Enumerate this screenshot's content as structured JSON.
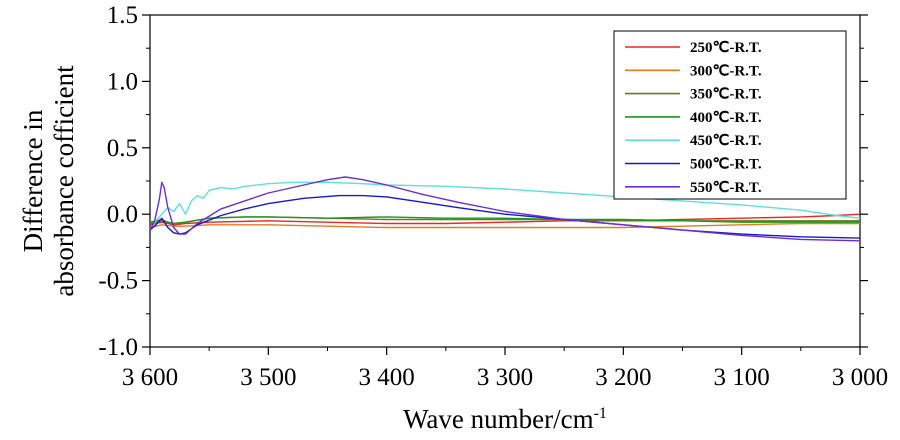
{
  "chart_data": {
    "type": "line",
    "xlabel": "Wave number/cm",
    "xlabel_sup": "-1",
    "ylabel_lines": [
      "Difference in",
      "absorbance cofficient"
    ],
    "xlim": [
      3600,
      3000
    ],
    "ylim": [
      -1.0,
      1.5
    ],
    "x_ticks": [
      3600,
      3500,
      3400,
      3300,
      3200,
      3100,
      3000
    ],
    "x_tick_labels": [
      "3 600",
      "3 500",
      "3 400",
      "3 300",
      "3 200",
      "3 100",
      "3 000"
    ],
    "y_ticks": [
      -1.0,
      -0.5,
      0.0,
      0.5,
      1.0,
      1.5
    ],
    "y_tick_labels": [
      "-1.0",
      "-0.5",
      "0.0",
      "0.5",
      "1.0",
      "1.5"
    ],
    "legend_position": "top-right",
    "grid": false,
    "series": [
      {
        "name": "250℃-R.T.",
        "color": "#e8282a",
        "points": [
          [
            3600,
            -0.08
          ],
          [
            3595,
            -0.07
          ],
          [
            3590,
            -0.06
          ],
          [
            3585,
            -0.07
          ],
          [
            3580,
            -0.08
          ],
          [
            3570,
            -0.07
          ],
          [
            3550,
            -0.06
          ],
          [
            3500,
            -0.05
          ],
          [
            3450,
            -0.06
          ],
          [
            3400,
            -0.07
          ],
          [
            3350,
            -0.07
          ],
          [
            3300,
            -0.06
          ],
          [
            3250,
            -0.05
          ],
          [
            3200,
            -0.05
          ],
          [
            3150,
            -0.04
          ],
          [
            3100,
            -0.03
          ],
          [
            3050,
            -0.02
          ],
          [
            3020,
            -0.01
          ],
          [
            3000,
            0.0
          ]
        ]
      },
      {
        "name": "300℃-R.T.",
        "color": "#e87a1e",
        "points": [
          [
            3600,
            -0.1
          ],
          [
            3595,
            -0.09
          ],
          [
            3590,
            -0.08
          ],
          [
            3580,
            -0.09
          ],
          [
            3570,
            -0.09
          ],
          [
            3550,
            -0.08
          ],
          [
            3500,
            -0.08
          ],
          [
            3450,
            -0.09
          ],
          [
            3400,
            -0.1
          ],
          [
            3350,
            -0.1
          ],
          [
            3300,
            -0.1
          ],
          [
            3250,
            -0.1
          ],
          [
            3200,
            -0.1
          ],
          [
            3150,
            -0.09
          ],
          [
            3100,
            -0.08
          ],
          [
            3050,
            -0.07
          ],
          [
            3000,
            -0.07
          ]
        ]
      },
      {
        "name": "350℃-R.T.",
        "color": "#6a7a1a",
        "points": [
          [
            3600,
            -0.06
          ],
          [
            3595,
            -0.05
          ],
          [
            3590,
            -0.04
          ],
          [
            3585,
            -0.06
          ],
          [
            3580,
            -0.07
          ],
          [
            3570,
            -0.06
          ],
          [
            3550,
            -0.03
          ],
          [
            3520,
            -0.02
          ],
          [
            3500,
            -0.02
          ],
          [
            3450,
            -0.03
          ],
          [
            3400,
            -0.04
          ],
          [
            3350,
            -0.04
          ],
          [
            3300,
            -0.04
          ],
          [
            3250,
            -0.04
          ],
          [
            3200,
            -0.05
          ],
          [
            3150,
            -0.05
          ],
          [
            3100,
            -0.05
          ],
          [
            3050,
            -0.05
          ],
          [
            3000,
            -0.05
          ]
        ]
      },
      {
        "name": "400℃-R.T.",
        "color": "#1a9a1a",
        "points": [
          [
            3600,
            -0.07
          ],
          [
            3595,
            -0.06
          ],
          [
            3590,
            -0.05
          ],
          [
            3580,
            -0.07
          ],
          [
            3570,
            -0.06
          ],
          [
            3550,
            -0.03
          ],
          [
            3520,
            -0.02
          ],
          [
            3500,
            -0.02
          ],
          [
            3450,
            -0.03
          ],
          [
            3400,
            -0.02
          ],
          [
            3350,
            -0.03
          ],
          [
            3300,
            -0.03
          ],
          [
            3250,
            -0.04
          ],
          [
            3200,
            -0.04
          ],
          [
            3150,
            -0.05
          ],
          [
            3100,
            -0.06
          ],
          [
            3050,
            -0.06
          ],
          [
            3000,
            -0.06
          ]
        ]
      },
      {
        "name": "450℃-R.T.",
        "color": "#5fe0d8",
        "points": [
          [
            3600,
            -0.12
          ],
          [
            3595,
            -0.05
          ],
          [
            3590,
            0.0
          ],
          [
            3585,
            0.05
          ],
          [
            3580,
            0.02
          ],
          [
            3575,
            0.08
          ],
          [
            3570,
            0.0
          ],
          [
            3565,
            0.1
          ],
          [
            3560,
            0.14
          ],
          [
            3555,
            0.12
          ],
          [
            3550,
            0.18
          ],
          [
            3540,
            0.2
          ],
          [
            3530,
            0.19
          ],
          [
            3520,
            0.21
          ],
          [
            3500,
            0.23
          ],
          [
            3480,
            0.24
          ],
          [
            3450,
            0.24
          ],
          [
            3420,
            0.23
          ],
          [
            3400,
            0.22
          ],
          [
            3350,
            0.21
          ],
          [
            3300,
            0.19
          ],
          [
            3250,
            0.16
          ],
          [
            3200,
            0.13
          ],
          [
            3150,
            0.1
          ],
          [
            3100,
            0.07
          ],
          [
            3050,
            0.03
          ],
          [
            3020,
            -0.01
          ],
          [
            3000,
            -0.03
          ]
        ]
      },
      {
        "name": "500℃-R.T.",
        "color": "#1818d0",
        "points": [
          [
            3600,
            -0.12
          ],
          [
            3595,
            -0.08
          ],
          [
            3590,
            -0.03
          ],
          [
            3585,
            -0.1
          ],
          [
            3580,
            -0.14
          ],
          [
            3575,
            -0.15
          ],
          [
            3570,
            -0.14
          ],
          [
            3560,
            -0.08
          ],
          [
            3540,
            -0.01
          ],
          [
            3520,
            0.04
          ],
          [
            3500,
            0.08
          ],
          [
            3470,
            0.12
          ],
          [
            3440,
            0.14
          ],
          [
            3420,
            0.14
          ],
          [
            3400,
            0.13
          ],
          [
            3370,
            0.09
          ],
          [
            3340,
            0.05
          ],
          [
            3300,
            0.0
          ],
          [
            3250,
            -0.04
          ],
          [
            3200,
            -0.08
          ],
          [
            3150,
            -0.12
          ],
          [
            3100,
            -0.15
          ],
          [
            3050,
            -0.17
          ],
          [
            3000,
            -0.18
          ]
        ]
      },
      {
        "name": "550℃-R.T.",
        "color": "#6a2ed8",
        "points": [
          [
            3600,
            -0.12
          ],
          [
            3596,
            -0.05
          ],
          [
            3592,
            0.12
          ],
          [
            3590,
            0.24
          ],
          [
            3588,
            0.2
          ],
          [
            3585,
            0.05
          ],
          [
            3580,
            -0.1
          ],
          [
            3575,
            -0.15
          ],
          [
            3570,
            -0.15
          ],
          [
            3560,
            -0.07
          ],
          [
            3540,
            0.04
          ],
          [
            3520,
            0.1
          ],
          [
            3500,
            0.16
          ],
          [
            3470,
            0.22
          ],
          [
            3450,
            0.26
          ],
          [
            3435,
            0.28
          ],
          [
            3420,
            0.26
          ],
          [
            3400,
            0.22
          ],
          [
            3370,
            0.15
          ],
          [
            3340,
            0.09
          ],
          [
            3300,
            0.02
          ],
          [
            3250,
            -0.04
          ],
          [
            3200,
            -0.08
          ],
          [
            3150,
            -0.12
          ],
          [
            3100,
            -0.16
          ],
          [
            3050,
            -0.19
          ],
          [
            3000,
            -0.2
          ]
        ]
      }
    ]
  }
}
